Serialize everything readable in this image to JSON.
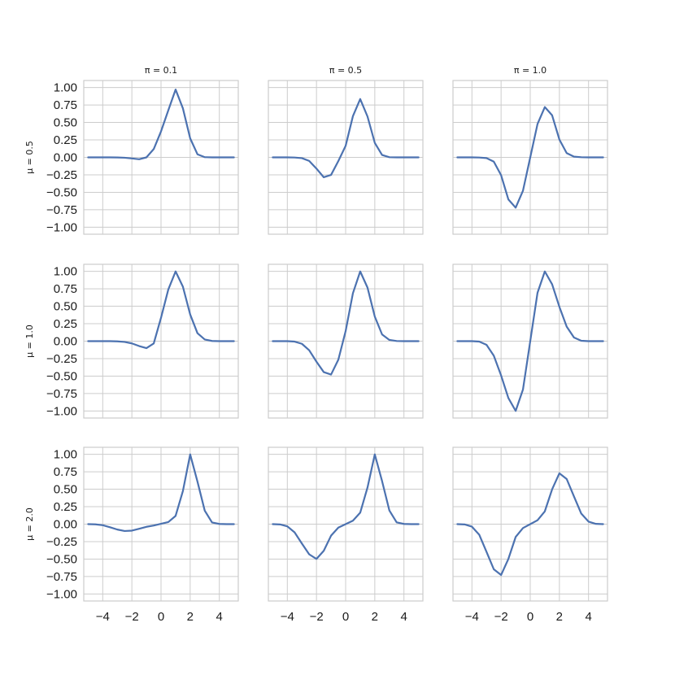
{
  "chart_data": {
    "type": "line",
    "layout": "3x3 small multiples, shared x and y axes",
    "column_titles": [
      "π = 0.1",
      "π = 0.5",
      "π = 1.0"
    ],
    "row_labels": [
      "μ = 0.5",
      "μ = 1.0",
      "μ = 2.0"
    ],
    "xlim": [
      -5.3,
      5.3
    ],
    "ylim": [
      -1.1,
      1.1
    ],
    "xticks": [
      -4,
      -2,
      0,
      2,
      4
    ],
    "xtick_labels": [
      "−4",
      "−2",
      "0",
      "2",
      "4"
    ],
    "yticks": [
      1.0,
      0.75,
      0.5,
      0.25,
      0.0,
      -0.25,
      -0.5,
      -0.75,
      -1.0
    ],
    "ytick_labels": [
      "1.00",
      "0.75",
      "0.50",
      "0.25",
      "0.00",
      "−0.25",
      "−0.50",
      "−0.75",
      "−1.00"
    ],
    "x_tick_labels_shown_on": "bottom row",
    "y_tick_labels_shown_on": "left column",
    "grid": true,
    "line_color": "#4c72b0",
    "x": [
      -5.0,
      -4.5,
      -4.0,
      -3.5,
      -3.0,
      -2.5,
      -2.0,
      -1.5,
      -1.0,
      -0.5,
      0.0,
      0.5,
      1.0,
      1.5,
      2.0,
      2.5,
      3.0,
      3.5,
      4.0,
      4.5,
      5.0
    ],
    "panels": [
      [
        {
          "col_title": "π = 0.1",
          "row_label": "μ = 0.5",
          "y": [
            0.0,
            0.0,
            0.0,
            0.0,
            -0.001,
            -0.005,
            -0.015,
            -0.027,
            -0.0,
            0.119,
            0.372,
            0.674,
            0.971,
            0.702,
            0.272,
            0.044,
            0.003,
            0.0,
            0.0,
            0.0,
            0.0
          ]
        },
        {
          "col_title": "π = 0.5",
          "row_label": "μ = 0.5",
          "y": [
            0.0,
            0.0,
            0.0,
            -0.002,
            -0.011,
            -0.051,
            -0.161,
            -0.285,
            -0.251,
            -0.052,
            0.165,
            0.59,
            0.835,
            0.585,
            0.208,
            0.034,
            0.002,
            0.0,
            0.0,
            0.0,
            0.0
          ]
        },
        {
          "col_title": "π = 1.0",
          "row_label": "μ = 0.5",
          "y": [
            0.0,
            0.0,
            0.0,
            -0.002,
            -0.01,
            -0.061,
            -0.255,
            -0.602,
            -0.72,
            -0.478,
            0.0,
            0.478,
            0.72,
            0.602,
            0.255,
            0.061,
            0.01,
            0.002,
            0.0,
            0.0,
            0.0
          ]
        }
      ],
      [
        {
          "col_title": "π = 0.1",
          "row_label": "μ = 1.0",
          "y": [
            0.0,
            0.0,
            0.0,
            0.0,
            -0.003,
            -0.011,
            -0.032,
            -0.07,
            -0.1,
            -0.033,
            0.335,
            0.74,
            0.998,
            0.78,
            0.382,
            0.114,
            0.024,
            0.003,
            0.0,
            0.0,
            0.0
          ]
        },
        {
          "col_title": "π = 0.5",
          "row_label": "μ = 1.0",
          "y": [
            0.0,
            0.0,
            0.0,
            -0.006,
            -0.038,
            -0.13,
            -0.294,
            -0.443,
            -0.478,
            -0.265,
            0.144,
            0.686,
            0.998,
            0.767,
            0.352,
            0.096,
            0.018,
            0.002,
            0.0,
            0.0,
            0.0
          ]
        },
        {
          "col_title": "π = 1.0",
          "row_label": "μ = 1.0",
          "y": [
            0.0,
            0.0,
            0.0,
            -0.006,
            -0.052,
            -0.208,
            -0.491,
            -0.814,
            -0.998,
            -0.693,
            0.0,
            0.693,
            0.998,
            0.814,
            0.491,
            0.208,
            0.052,
            0.006,
            0.0,
            0.0,
            0.0
          ]
        }
      ],
      [
        {
          "col_title": "π = 0.1",
          "row_label": "μ = 2.0",
          "y": [
            0.0,
            -0.003,
            -0.015,
            -0.044,
            -0.077,
            -0.098,
            -0.093,
            -0.066,
            -0.038,
            -0.02,
            0.005,
            0.03,
            0.118,
            0.474,
            0.998,
            0.609,
            0.193,
            0.024,
            0.003,
            0.0,
            0.0
          ]
        },
        {
          "col_title": "π = 0.5",
          "row_label": "μ = 2.0",
          "y": [
            0.0,
            -0.004,
            -0.031,
            -0.118,
            -0.278,
            -0.432,
            -0.498,
            -0.381,
            -0.165,
            -0.049,
            0.0,
            0.05,
            0.164,
            0.524,
            0.998,
            0.616,
            0.196,
            0.025,
            0.003,
            0.0,
            0.0
          ]
        },
        {
          "col_title": "π = 1.0",
          "row_label": "μ = 2.0",
          "y": [
            0.0,
            -0.004,
            -0.036,
            -0.151,
            -0.396,
            -0.646,
            -0.728,
            -0.498,
            -0.183,
            -0.056,
            0.0,
            0.056,
            0.183,
            0.498,
            0.728,
            0.646,
            0.396,
            0.151,
            0.036,
            0.004,
            0.0
          ]
        }
      ]
    ]
  }
}
